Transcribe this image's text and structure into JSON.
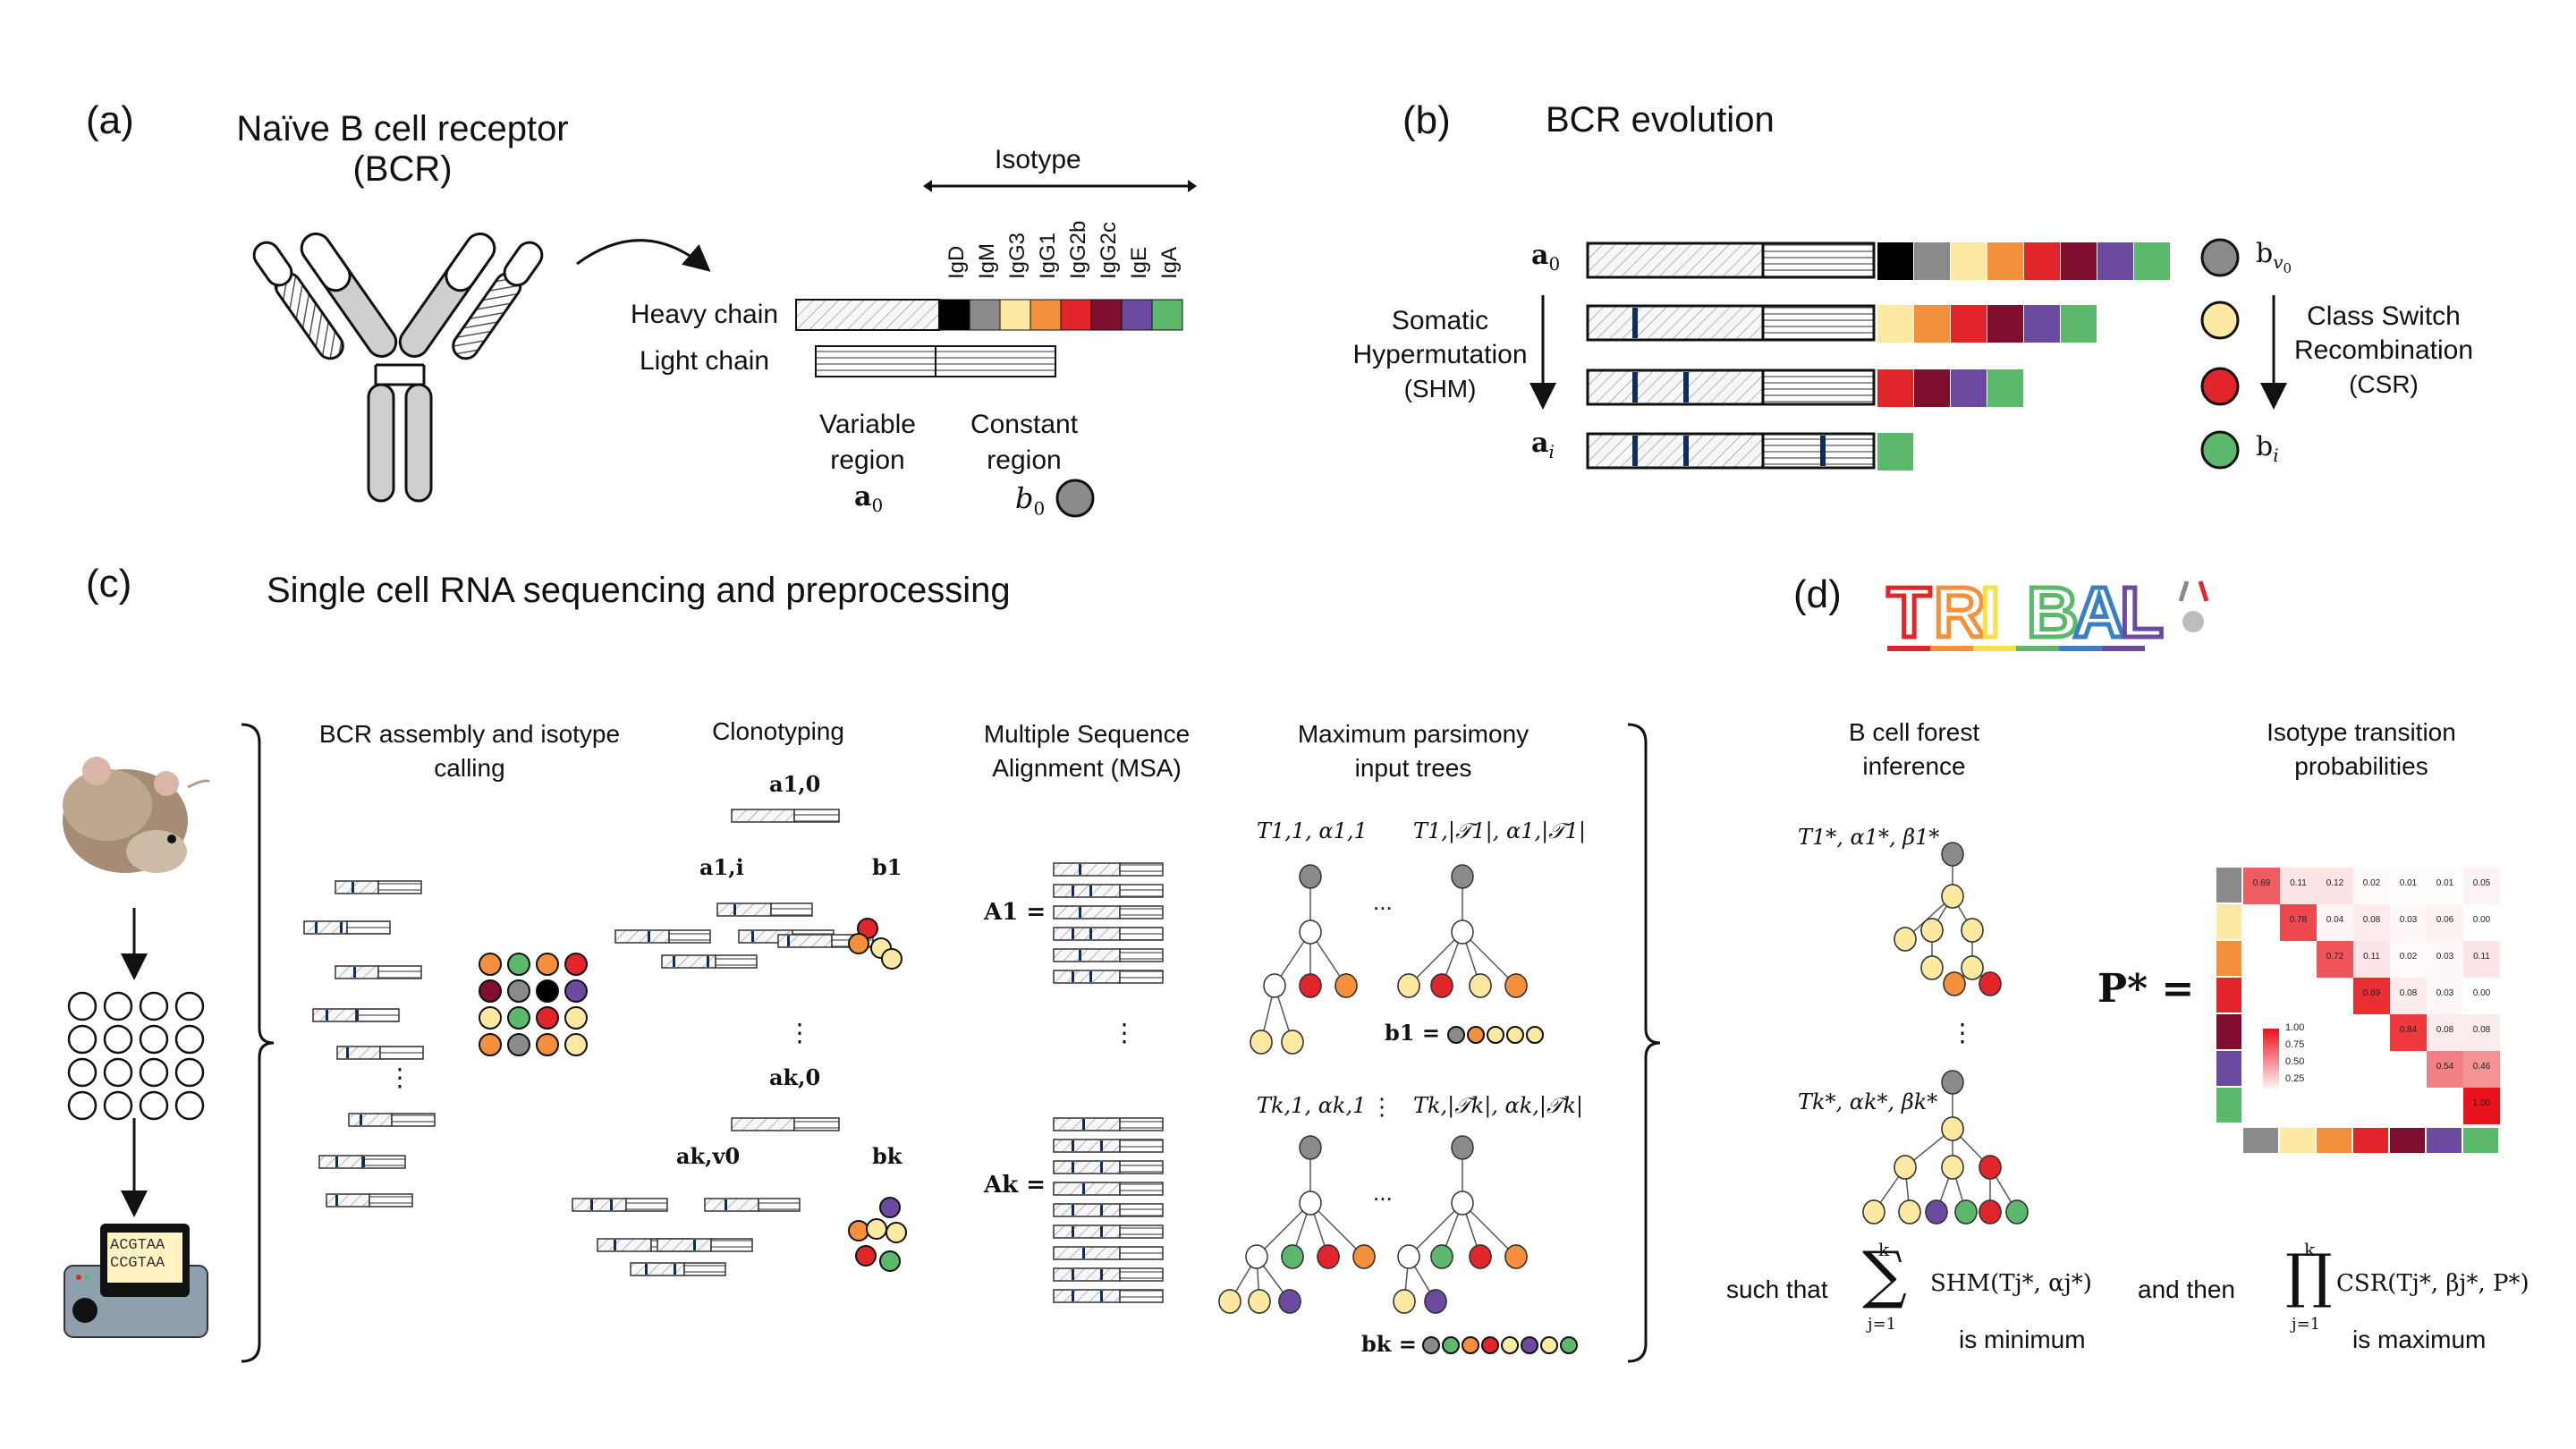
{
  "colors": {
    "IgD": "#000000",
    "IgM": "#8a8a8a",
    "IgG3": "#fde9a2",
    "IgG1": "#f4903c",
    "IgG2b": "#e2252b",
    "IgG2c": "#800f2f",
    "IgE": "#6b4aa0",
    "IgA": "#5cb96b",
    "marker": "#0d2d5a",
    "heat_low": "#ffffff",
    "heat_high": "#e8141b",
    "tribal": [
      "#e2252b",
      "#f4903c",
      "#fde049",
      "#5cb96b",
      "#3a7fc4",
      "#6b4aa0"
    ]
  },
  "panel_a": {
    "label": "(a)",
    "title_line1": "Naïve B cell receptor",
    "title_line2": "(BCR)",
    "isotype_header": "Isotype",
    "isotypes": [
      "IgD",
      "IgM",
      "IgG3",
      "IgG1",
      "IgG2b",
      "IgG2c",
      "IgE",
      "IgA"
    ],
    "heavy_chain": "Heavy chain",
    "light_chain": "Light chain",
    "variable_line1": "Variable",
    "variable_line2": "region",
    "constant_line1": "Constant",
    "constant_line2": "region",
    "a0": "a",
    "a0_sub": "0",
    "b0": "b",
    "b0_sub": "0"
  },
  "panel_b": {
    "label": "(b)",
    "title": "BCR evolution",
    "a0": "a",
    "a0_sub": "0",
    "ai": "a",
    "ai_sub": "i",
    "shm_line1": "Somatic",
    "shm_line2": "Hypermutation",
    "shm_line3": "(SHM)",
    "csr_line1": "Class Switch",
    "csr_line2": "Recombination",
    "csr_line3": "(CSR)",
    "bv0": "b",
    "bv0_sub": "v",
    "bv0_subsub": "0",
    "bi": "b",
    "bi_sub": "i"
  },
  "panel_c": {
    "label": "(c)",
    "title": "Single cell RNA sequencing and preprocessing",
    "col1_line1": "BCR  assembly and isotype",
    "col1_line2": "calling",
    "col2": "Clonotyping",
    "col3_line1": "Multiple Sequence",
    "col3_line2": "Alignment (MSA)",
    "col4_line1": "Maximum parsimony",
    "col4_line2": "input trees",
    "seq_line1": "ACGTAA",
    "seq_line2": "CCGTAA",
    "a10": "a1,0",
    "a1i": "a1,i",
    "b1": "b1",
    "ak0": "ak,0",
    "akv0": "ak,v0",
    "bk": "bk",
    "A1": "A1 =",
    "Ak": "Ak =",
    "T11": "T1,1, α1,1",
    "T1n": "T1,|𝒯1|, α1,|𝒯1|",
    "Tk1": "Tk,1, αk,1",
    "Tkn": "Tk,|𝒯k|, αk,|𝒯k|",
    "b1eq": "b1 =",
    "bkeq": "bk =",
    "dots": "⋮",
    "hdots": "..."
  },
  "panel_d": {
    "label": "(d)",
    "logo_text": "TRIBAL",
    "col1_line1": "B cell forest",
    "col1_line2": "inference",
    "col2_line1": "Isotype transition",
    "col2_line2": "probabilities",
    "T1star": "T1*, α1*, β1*",
    "Tkstar": "Tk*, αk*, βk*",
    "Pstar": "P* =",
    "such_that": "such that",
    "and_then": "and then",
    "shm_expr": "SHM(Tj*, αj*)",
    "csr_expr": "CSR(Tj*, βj*, P*)",
    "sum_top": "k",
    "sum_bottom": "j=1",
    "is_minimum": "is minimum",
    "is_maximum": "is maximum",
    "legend_ticks": [
      "1.00",
      "0.75",
      "0.50",
      "0.25"
    ],
    "matrix": [
      [
        "0.69",
        "0.11",
        "0.12",
        "0.02",
        "0.01",
        "0.01",
        "0.05"
      ],
      [
        "",
        "0.78",
        "0.04",
        "0.08",
        "0.03",
        "0.06",
        "0.00"
      ],
      [
        "",
        "",
        "0.72",
        "0.11",
        "0.02",
        "0.03",
        "0.11"
      ],
      [
        "",
        "",
        "",
        "0.89",
        "0.08",
        "0.03",
        "0.00"
      ],
      [
        "",
        "",
        "",
        "",
        "0.84",
        "0.08",
        "0.08"
      ],
      [
        "",
        "",
        "",
        "",
        "",
        "0.54",
        "0.46"
      ],
      [
        "",
        "",
        "",
        "",
        "",
        "",
        "1.00"
      ]
    ]
  }
}
